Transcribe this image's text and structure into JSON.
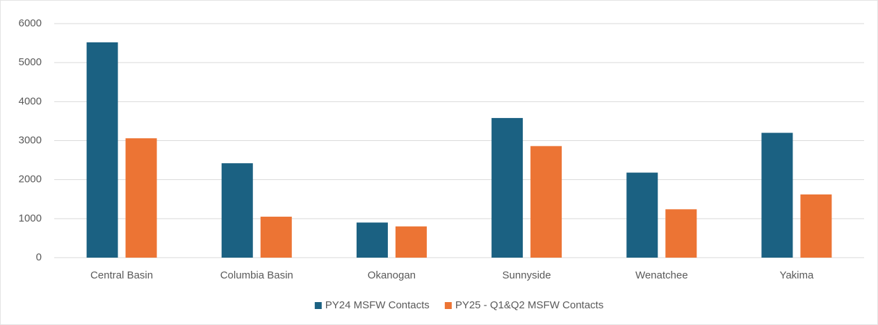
{
  "chart_data": {
    "type": "bar",
    "categories": [
      "Central Basin",
      "Columbia Basin",
      "Okanogan",
      "Sunnyside",
      "Wenatchee",
      "Yakima"
    ],
    "series": [
      {
        "name": "PY24 MSFW Contacts",
        "color": "#1b6182",
        "values": [
          5520,
          2420,
          900,
          3580,
          2180,
          3200
        ]
      },
      {
        "name": "PY25 - Q1&Q2 MSFW Contacts",
        "color": "#ec7434",
        "values": [
          3060,
          1050,
          800,
          2860,
          1240,
          1620
        ]
      }
    ],
    "ylim": [
      0,
      6000
    ],
    "yticks": [
      0,
      1000,
      2000,
      3000,
      4000,
      5000,
      6000
    ],
    "grid": true,
    "legend": "bottom"
  }
}
